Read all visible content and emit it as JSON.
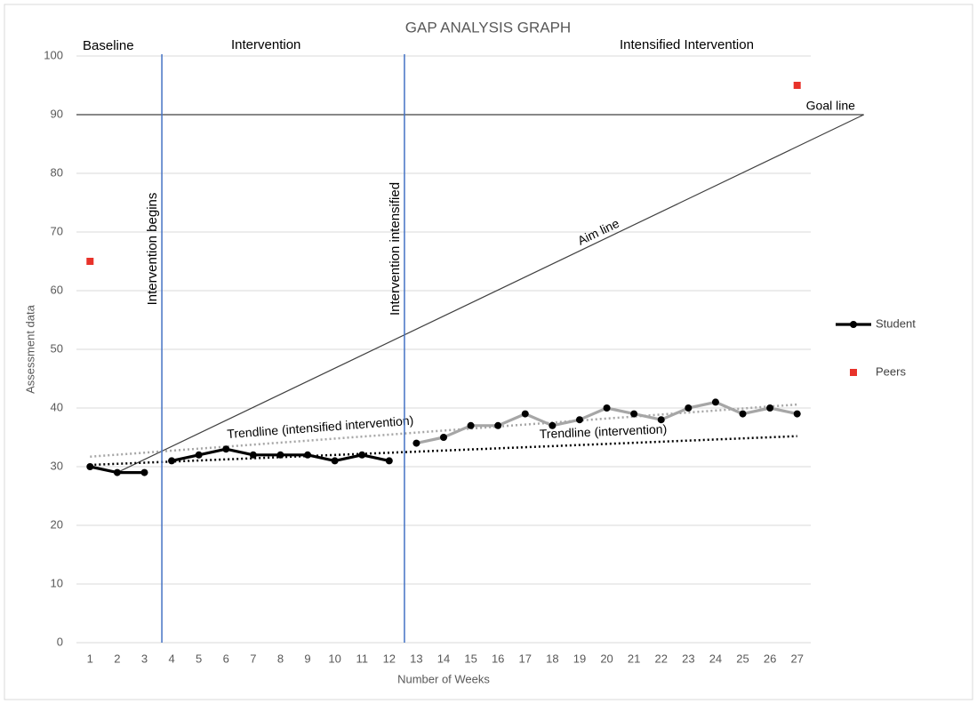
{
  "chart_data": {
    "type": "line",
    "title": "GAP ANALYSIS GRAPH",
    "xlabel": "Number of Weeks",
    "ylabel": "Assessment data",
    "x": [
      1,
      2,
      3,
      4,
      5,
      6,
      7,
      8,
      9,
      10,
      11,
      12,
      13,
      14,
      15,
      16,
      17,
      18,
      19,
      20,
      21,
      22,
      23,
      24,
      25,
      26,
      27
    ],
    "xlim": [
      0.5,
      27.5
    ],
    "ylim": [
      0,
      100
    ],
    "yticks": [
      0,
      10,
      20,
      30,
      40,
      50,
      60,
      70,
      80,
      90,
      100
    ],
    "grid": true,
    "series": [
      {
        "name": "Student",
        "color": "#000000",
        "marker": "circle",
        "values": [
          30,
          29,
          29,
          31,
          32,
          33,
          32,
          32,
          32,
          31,
          32,
          31,
          null,
          null,
          null,
          null,
          null,
          null,
          null,
          null,
          null,
          null,
          null,
          null,
          null,
          null,
          null
        ]
      },
      {
        "color": "#a6a6a6",
        "marker": "circle",
        "values": [
          null,
          null,
          null,
          null,
          null,
          null,
          null,
          null,
          null,
          null,
          null,
          null,
          34,
          35,
          37,
          37,
          39,
          37,
          38,
          40,
          39,
          38,
          40,
          41,
          39,
          40,
          39
        ]
      },
      {
        "name": "Peers",
        "color": "#e8322a",
        "marker": "square",
        "line": false,
        "values": [
          65,
          null,
          null,
          null,
          null,
          null,
          null,
          null,
          null,
          null,
          null,
          null,
          null,
          null,
          null,
          null,
          null,
          null,
          null,
          null,
          null,
          null,
          null,
          null,
          null,
          null,
          95
        ]
      }
    ],
    "phases": [
      "Baseline",
      "Intervention",
      "Intensified Intervention"
    ],
    "phase_lines": [
      {
        "x": 3.64,
        "label": "Intervention begins",
        "color": "#4472c4"
      },
      {
        "x": 12.56,
        "label": "Intervention intensified",
        "color": "#4472c4"
      }
    ],
    "goal_line": {
      "label": "Goal line",
      "value": 90,
      "x": [
        0.5,
        29.45
      ]
    },
    "aim_line": {
      "label": "Aim line",
      "x": [
        2,
        29.45
      ],
      "y": [
        29,
        90
      ]
    },
    "trendlines": [
      {
        "label": "Trendline (intensified intervention)",
        "color": "#a6a6a6",
        "x": [
          1,
          27
        ],
        "y": [
          31.7,
          40.6
        ]
      },
      {
        "label": "Trendline (intervention)",
        "color": "#000000",
        "x": [
          1,
          27
        ],
        "y": [
          30.3,
          35.2
        ]
      }
    ]
  }
}
